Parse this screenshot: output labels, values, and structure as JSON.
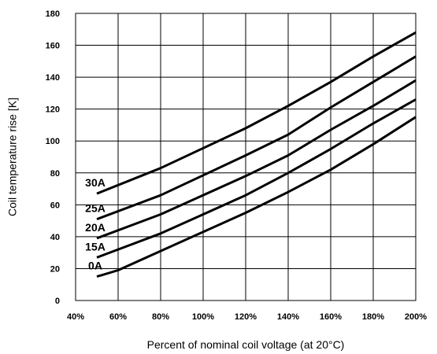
{
  "chart_data": {
    "type": "line",
    "xlabel": "Percent of nominal coil voltage (at 20°C)",
    "ylabel": "Coil temperature rise [K]",
    "xlim": [
      40,
      200
    ],
    "ylim": [
      0,
      180
    ],
    "x_ticks": [
      40,
      60,
      80,
      100,
      120,
      140,
      160,
      180,
      200
    ],
    "x_tick_labels": [
      "40%",
      "60%",
      "80%",
      "100%",
      "120%",
      "140%",
      "160%",
      "180%",
      "200%"
    ],
    "y_ticks": [
      0,
      20,
      40,
      60,
      80,
      100,
      120,
      140,
      160,
      180
    ],
    "y_tick_labels": [
      "0",
      "20",
      "40",
      "60",
      "80",
      "100",
      "120",
      "140",
      "160",
      "180"
    ],
    "grid": true,
    "line_color": "#000000",
    "series": [
      {
        "name": "30A",
        "x": [
          50,
          80,
          120,
          140,
          160,
          180,
          200
        ],
        "y": [
          67,
          83,
          108,
          122,
          137,
          153,
          168
        ]
      },
      {
        "name": "25A",
        "x": [
          50,
          80,
          120,
          140,
          160,
          180,
          200
        ],
        "y": [
          51,
          66,
          91,
          104,
          121,
          137,
          153
        ]
      },
      {
        "name": "20A",
        "x": [
          50,
          80,
          120,
          140,
          160,
          180,
          200
        ],
        "y": [
          39,
          54,
          78,
          91,
          107,
          122,
          138
        ]
      },
      {
        "name": "15A",
        "x": [
          50,
          80,
          120,
          140,
          160,
          180,
          200
        ],
        "y": [
          27,
          42,
          66,
          80,
          95,
          111,
          126
        ]
      },
      {
        "name": "0A",
        "x": [
          50,
          60,
          80,
          120,
          140,
          160,
          180,
          200
        ],
        "y": [
          15,
          19,
          31,
          55,
          68,
          82,
          98,
          115
        ]
      }
    ]
  }
}
